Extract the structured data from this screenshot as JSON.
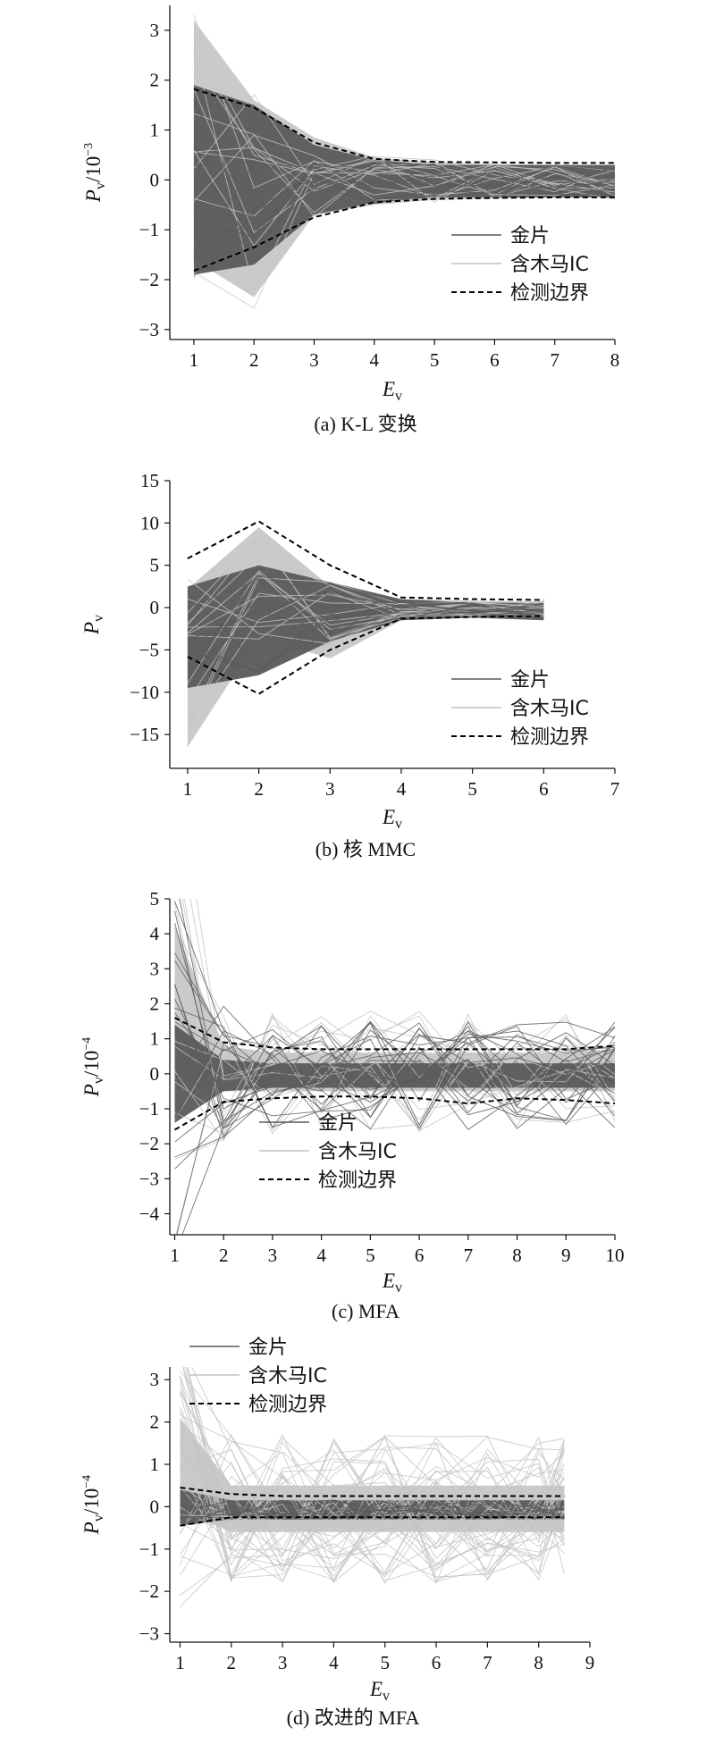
{
  "colors": {
    "golden": "#5a5a5a",
    "trojan": "#c4c4c4",
    "boundary": "#000000"
  },
  "legend": {
    "golden": "金片",
    "trojan": "含木马IC",
    "boundary": "检测边界"
  },
  "chart_data": [
    {
      "type": "line",
      "caption": "(a) K-L 变换",
      "ylabel": {
        "base": "P",
        "sub": "v",
        "rest": "/10",
        "sup": "−3"
      },
      "xlabel": {
        "base": "E",
        "sub": "v"
      },
      "x": [
        1,
        2,
        3,
        4,
        5,
        6,
        7,
        8
      ],
      "xlim": [
        0.6,
        8
      ],
      "ylim": [
        -3.2,
        3.5
      ],
      "yticks": [
        -3,
        -2,
        -1,
        0,
        1,
        2,
        3
      ],
      "yticklabels": [
        "−3",
        "−2",
        "−1",
        "0",
        "1",
        "2",
        "3"
      ],
      "xticklabels": [
        "1",
        "2",
        "3",
        "4",
        "5",
        "6",
        "7",
        "8"
      ],
      "legend_position": "center-right",
      "series": [
        {
          "name": "检测边界",
          "style": "dashed",
          "values": [
            1.82,
            1.45,
            0.75,
            0.42,
            0.36,
            0.35,
            0.34,
            0.34
          ]
        },
        {
          "name": "检测边界",
          "style": "dashed",
          "values": [
            -1.82,
            -1.35,
            -0.75,
            -0.45,
            -0.38,
            -0.36,
            -0.35,
            -0.35
          ]
        }
      ],
      "golden_envelope": {
        "upper": [
          1.9,
          1.5,
          0.7,
          0.4,
          0.3,
          0.3,
          0.3,
          0.3
        ],
        "lower": [
          -1.9,
          -1.7,
          -0.7,
          -0.45,
          -0.35,
          -0.35,
          -0.35,
          -0.35
        ]
      },
      "trojan_envelope": {
        "upper": [
          3.2,
          1.6,
          0.85,
          0.45,
          0.35,
          0.32,
          0.3,
          0.3
        ],
        "lower": [
          -1.6,
          -2.35,
          -0.7,
          -0.5,
          -0.4,
          -0.38,
          -0.35,
          -0.35
        ]
      }
    },
    {
      "type": "line",
      "caption": "(b) 核 MMC",
      "ylabel": {
        "base": "P",
        "sub": "v",
        "rest": "",
        "sup": ""
      },
      "xlabel": {
        "base": "E",
        "sub": "v"
      },
      "x": [
        1,
        2,
        3,
        4,
        5,
        6
      ],
      "xlim": [
        0.75,
        7
      ],
      "ylim": [
        -19,
        15
      ],
      "yticks": [
        -15,
        -10,
        -5,
        0,
        5,
        10,
        15
      ],
      "yticklabels": [
        "−15",
        "−10",
        "−5",
        "0",
        "5",
        "10",
        "15"
      ],
      "xticklabels": [
        "1",
        "2",
        "3",
        "4",
        "5",
        "6",
        "7"
      ],
      "legend_position": "bottom-right",
      "series": [
        {
          "name": "检测边界",
          "style": "dashed",
          "values": [
            5.8,
            10.2,
            5.0,
            1.2,
            1.0,
            0.9
          ]
        },
        {
          "name": "检测边界",
          "style": "dashed",
          "values": [
            -5.8,
            -10.2,
            -5.0,
            -1.3,
            -1.1,
            -1.0
          ]
        }
      ],
      "golden_envelope": {
        "upper": [
          2.5,
          5.0,
          3.0,
          1.0,
          0.6,
          0.5
        ],
        "lower": [
          -9.5,
          -8.0,
          -4.0,
          -1.5,
          -1.2,
          -1.5
        ]
      },
      "trojan_envelope": {
        "upper": [
          2.2,
          9.5,
          2.5,
          1.0,
          0.8,
          0.7
        ],
        "lower": [
          -16.5,
          -3.5,
          -6.0,
          -1.5,
          -1.2,
          -1.0
        ]
      }
    },
    {
      "type": "line",
      "caption": "(c) MFA",
      "ylabel": {
        "base": "P",
        "sub": "v",
        "rest": "/10",
        "sup": "−4"
      },
      "xlabel": {
        "base": "E",
        "sub": "v"
      },
      "x": [
        1,
        2,
        3,
        4,
        5,
        6,
        7,
        8,
        9,
        10
      ],
      "xlim": [
        0.9,
        10
      ],
      "ylim": [
        -4.6,
        5
      ],
      "yticks": [
        -4,
        -3,
        -2,
        -1,
        0,
        1,
        2,
        3,
        4,
        5
      ],
      "yticklabels": [
        "−4",
        "−3",
        "−2",
        "−1",
        "0",
        "1",
        "2",
        "3",
        "4",
        "5"
      ],
      "xticklabels": [
        "1",
        "2",
        "3",
        "4",
        "5",
        "6",
        "7",
        "8",
        "9",
        "10"
      ],
      "legend_position": "bottom-left",
      "series": [
        {
          "name": "检测边界",
          "style": "dashed",
          "values": [
            1.6,
            0.9,
            0.75,
            0.7,
            0.7,
            0.7,
            0.7,
            0.7,
            0.7,
            0.8
          ]
        },
        {
          "name": "检测边界",
          "style": "dashed",
          "values": [
            -1.6,
            -0.8,
            -0.7,
            -0.65,
            -0.65,
            -0.7,
            -0.85,
            -0.7,
            -0.75,
            -0.85
          ]
        }
      ],
      "golden_envelope": {
        "upper": [
          1.4,
          0.4,
          0.3,
          0.3,
          0.3,
          0.3,
          0.3,
          0.3,
          0.3,
          0.3
        ],
        "lower": [
          -1.4,
          -0.5,
          -0.4,
          -0.4,
          -0.4,
          -0.4,
          -0.4,
          -0.4,
          -0.4,
          -0.4
        ]
      },
      "trojan_envelope": {
        "upper": [
          4.2,
          0.8,
          0.6,
          0.6,
          0.6,
          0.6,
          0.6,
          0.6,
          0.6,
          0.7
        ],
        "lower": [
          -0.3,
          -0.5,
          -0.5,
          -0.5,
          -0.5,
          -0.5,
          -0.5,
          -0.5,
          -0.5,
          -0.5
        ]
      }
    },
    {
      "type": "line",
      "caption": "(d) 改进的 MFA",
      "ylabel": {
        "base": "P",
        "sub": "v",
        "rest": "/10",
        "sup": "−4"
      },
      "xlabel": {
        "base": "E",
        "sub": "v"
      },
      "x": [
        1,
        2,
        3,
        4,
        5,
        6,
        7,
        8,
        8.5
      ],
      "xlim": [
        0.8,
        9
      ],
      "ylim": [
        -3.2,
        3.3
      ],
      "yticks": [
        -3,
        -2,
        -1,
        0,
        1,
        2,
        3
      ],
      "yticklabels": [
        "−3",
        "−2",
        "−1",
        "0",
        "1",
        "2",
        "3"
      ],
      "xticklabels": [
        "1",
        "2",
        "3",
        "4",
        "5",
        "6",
        "7",
        "8",
        "9"
      ],
      "legend_position": "top-left",
      "series": [
        {
          "name": "检测边界",
          "style": "dashed",
          "values": [
            0.45,
            0.3,
            0.25,
            0.25,
            0.25,
            0.25,
            0.25,
            0.25,
            0.25
          ]
        },
        {
          "name": "检测边界",
          "style": "dashed",
          "values": [
            -0.45,
            -0.25,
            -0.25,
            -0.25,
            -0.25,
            -0.25,
            -0.25,
            -0.25,
            -0.25
          ]
        }
      ],
      "golden_envelope": {
        "upper": [
          0.4,
          0.15,
          0.15,
          0.15,
          0.15,
          0.15,
          0.15,
          0.15,
          0.15
        ],
        "lower": [
          -0.45,
          -0.3,
          -0.3,
          -0.3,
          -0.3,
          -0.3,
          -0.3,
          -0.3,
          -0.3
        ]
      },
      "trojan_envelope": {
        "upper": [
          2.1,
          0.5,
          0.5,
          0.5,
          0.5,
          0.5,
          0.5,
          0.5,
          0.5
        ],
        "lower": [
          -0.1,
          -0.6,
          -0.6,
          -0.6,
          -0.6,
          -0.6,
          -0.6,
          -0.6,
          -0.6
        ]
      }
    }
  ]
}
